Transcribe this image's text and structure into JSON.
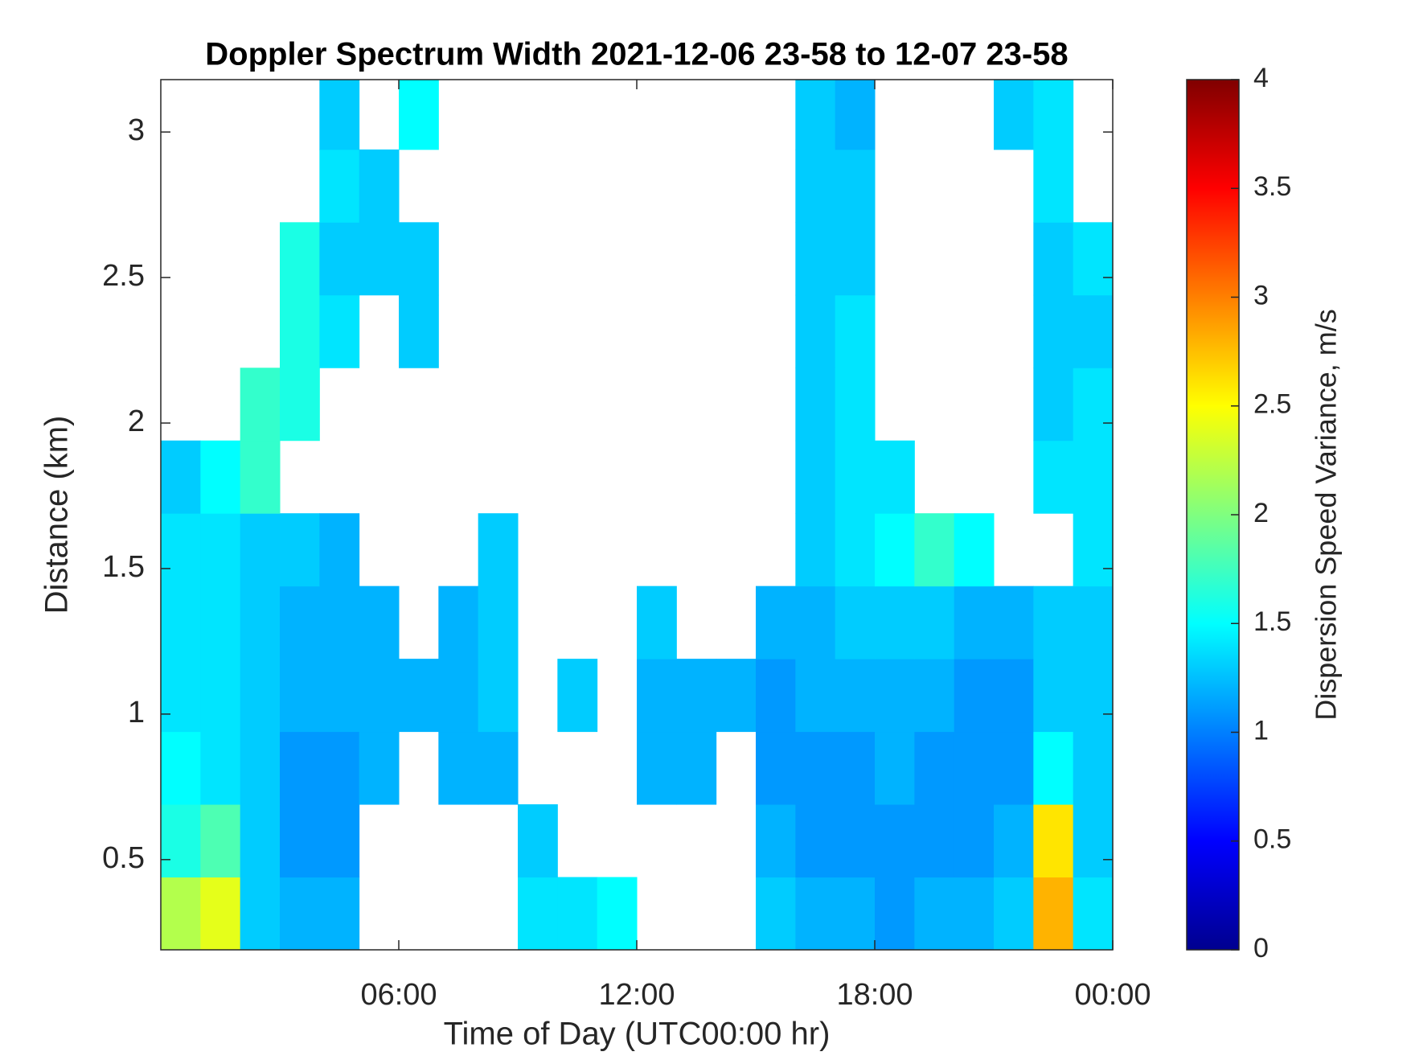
{
  "chart_data": {
    "type": "heatmap",
    "title": "Doppler Spectrum Width 2021-12-06 23-58 to 12-07 23-58",
    "x_label": "Time of Day (UTC00:00 hr)",
    "y_label": "Distance (km)",
    "colorbar_label": "Dispersion Speed Variance, m/s",
    "colormap": "jet",
    "x_bins": [
      0,
      1,
      2,
      3,
      4,
      5,
      6,
      7,
      8,
      9,
      10,
      11,
      12,
      13,
      14,
      15,
      16,
      17,
      18,
      19,
      20,
      21,
      22,
      23,
      24
    ],
    "y_bins": [
      0.19,
      0.44,
      0.69,
      0.94,
      1.19,
      1.44,
      1.69,
      1.94,
      2.19,
      2.44,
      2.69,
      2.94,
      3.18
    ],
    "z": [
      [
        2.2,
        2.4,
        1.3,
        1.2,
        1.2,
        null,
        null,
        null,
        null,
        1.4,
        1.4,
        1.5,
        null,
        null,
        null,
        1.3,
        1.2,
        1.2,
        1.1,
        1.2,
        1.2,
        1.3,
        2.8,
        1.4
      ],
      [
        1.6,
        1.8,
        1.3,
        1.1,
        1.1,
        null,
        null,
        null,
        null,
        1.3,
        null,
        null,
        null,
        null,
        null,
        1.2,
        1.1,
        1.1,
        1.1,
        1.1,
        1.1,
        1.2,
        2.6,
        1.3
      ],
      [
        1.5,
        1.4,
        1.3,
        1.1,
        1.1,
        1.2,
        null,
        1.2,
        1.2,
        null,
        null,
        null,
        1.2,
        1.2,
        null,
        1.1,
        1.1,
        1.1,
        1.2,
        1.1,
        1.1,
        1.1,
        1.5,
        1.3
      ],
      [
        1.4,
        1.4,
        1.3,
        1.2,
        1.2,
        1.2,
        1.2,
        1.2,
        1.3,
        null,
        1.3,
        null,
        1.2,
        1.2,
        1.2,
        1.1,
        1.2,
        1.2,
        1.2,
        1.2,
        1.1,
        1.1,
        1.3,
        1.3
      ],
      [
        1.4,
        1.4,
        1.3,
        1.2,
        1.2,
        1.2,
        null,
        1.2,
        1.3,
        null,
        null,
        null,
        1.3,
        null,
        null,
        1.2,
        1.2,
        1.3,
        1.3,
        1.3,
        1.2,
        1.2,
        1.3,
        1.3
      ],
      [
        1.4,
        1.4,
        1.3,
        1.3,
        1.2,
        null,
        null,
        null,
        1.3,
        null,
        null,
        null,
        null,
        null,
        null,
        null,
        1.3,
        1.4,
        1.5,
        1.7,
        1.5,
        null,
        null,
        1.4
      ],
      [
        1.3,
        1.5,
        1.7,
        null,
        null,
        null,
        null,
        null,
        null,
        null,
        null,
        null,
        null,
        null,
        null,
        null,
        1.3,
        1.4,
        1.4,
        null,
        null,
        null,
        1.4,
        1.4
      ],
      [
        null,
        null,
        1.7,
        1.6,
        null,
        null,
        null,
        null,
        null,
        null,
        null,
        null,
        null,
        null,
        null,
        null,
        1.3,
        1.4,
        null,
        null,
        null,
        null,
        1.3,
        1.4
      ],
      [
        null,
        null,
        null,
        1.6,
        1.4,
        null,
        1.3,
        null,
        null,
        null,
        null,
        null,
        null,
        null,
        null,
        null,
        1.3,
        1.4,
        null,
        null,
        null,
        null,
        1.3,
        1.3
      ],
      [
        null,
        null,
        null,
        1.6,
        1.3,
        1.3,
        1.3,
        null,
        null,
        null,
        null,
        null,
        null,
        null,
        null,
        null,
        1.3,
        1.3,
        null,
        null,
        null,
        null,
        1.3,
        1.4
      ],
      [
        null,
        null,
        null,
        null,
        1.4,
        1.3,
        null,
        null,
        null,
        null,
        null,
        null,
        null,
        null,
        null,
        null,
        1.3,
        1.3,
        null,
        null,
        null,
        null,
        1.4,
        null
      ],
      [
        null,
        null,
        null,
        null,
        1.3,
        null,
        1.5,
        null,
        null,
        null,
        null,
        null,
        null,
        null,
        null,
        null,
        1.3,
        1.2,
        null,
        null,
        null,
        1.3,
        1.4,
        null
      ]
    ],
    "xlim": [
      0,
      24
    ],
    "xticks": [
      {
        "value": 6,
        "label": "06:00"
      },
      {
        "value": 12,
        "label": "12:00"
      },
      {
        "value": 18,
        "label": "18:00"
      },
      {
        "value": 24,
        "label": "00:00"
      }
    ],
    "ylim": [
      0.19,
      3.18
    ],
    "yticks": [
      0.5,
      1,
      1.5,
      2,
      2.5,
      3
    ],
    "clim": [
      0,
      4
    ],
    "cticks": [
      0,
      0.5,
      1,
      1.5,
      2,
      2.5,
      3,
      3.5,
      4
    ]
  }
}
